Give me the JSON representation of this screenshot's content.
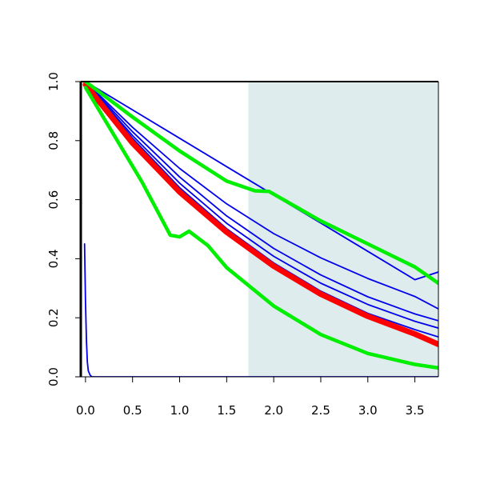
{
  "chart_data": {
    "type": "line",
    "title": "",
    "xlabel": "",
    "ylabel": "",
    "xlim": [
      -0.05,
      3.75
    ],
    "ylim": [
      0.0,
      1.0
    ],
    "grid": false,
    "x_ticks": [
      "0.0",
      "0.5",
      "1.0",
      "1.5",
      "2.0",
      "2.5",
      "3.0",
      "3.5"
    ],
    "y_ticks": [
      "0.0",
      "0.2",
      "0.4",
      "0.6",
      "0.8",
      "1.0"
    ],
    "shaded_region": {
      "x_start": 1.73,
      "x_end": 3.75,
      "color": "#dfeced"
    },
    "series": [
      {
        "color": "#0000ee",
        "role": "blue-line",
        "points": [
          [
            -0.01,
            0.45
          ],
          [
            0.0,
            0.25
          ],
          [
            0.01,
            0.12
          ],
          [
            0.02,
            0.05
          ],
          [
            0.03,
            0.02
          ],
          [
            0.05,
            0.005
          ],
          [
            0.07,
            0.0
          ],
          [
            3.75,
            0.0
          ]
        ]
      },
      {
        "color": "#0000ee",
        "role": "blue-line",
        "points": [
          [
            0.0,
            1.0
          ],
          [
            0.5,
            0.904
          ],
          [
            1.0,
            0.808
          ],
          [
            1.5,
            0.712
          ],
          [
            2.0,
            0.616
          ],
          [
            2.5,
            0.521
          ],
          [
            3.0,
            0.425
          ],
          [
            3.5,
            0.329
          ],
          [
            3.75,
            0.355
          ]
        ]
      },
      {
        "color": "#0000ee",
        "role": "blue-line",
        "points": [
          [
            0.0,
            1.0
          ],
          [
            0.5,
            0.845
          ],
          [
            1.0,
            0.706
          ],
          [
            1.5,
            0.586
          ],
          [
            2.0,
            0.485
          ],
          [
            2.5,
            0.403
          ],
          [
            3.0,
            0.333
          ],
          [
            3.5,
            0.272
          ],
          [
            3.75,
            0.23
          ]
        ]
      },
      {
        "color": "#0000ee",
        "role": "blue-line",
        "points": [
          [
            0.0,
            1.0
          ],
          [
            0.5,
            0.83
          ],
          [
            1.0,
            0.677
          ],
          [
            1.5,
            0.545
          ],
          [
            2.0,
            0.435
          ],
          [
            2.5,
            0.345
          ],
          [
            3.0,
            0.271
          ],
          [
            3.5,
            0.213
          ],
          [
            3.75,
            0.19
          ]
        ]
      },
      {
        "color": "#0000ee",
        "role": "blue-line",
        "points": [
          [
            0.0,
            1.0
          ],
          [
            0.5,
            0.817
          ],
          [
            1.0,
            0.656
          ],
          [
            1.5,
            0.52
          ],
          [
            2.0,
            0.408
          ],
          [
            2.5,
            0.317
          ],
          [
            3.0,
            0.245
          ],
          [
            3.5,
            0.188
          ],
          [
            3.75,
            0.165
          ]
        ]
      },
      {
        "color": "#0000ee",
        "role": "blue-line",
        "points": [
          [
            0.0,
            1.0
          ],
          [
            0.5,
            0.808
          ],
          [
            1.0,
            0.641
          ],
          [
            1.5,
            0.502
          ],
          [
            2.0,
            0.386
          ],
          [
            2.5,
            0.29
          ],
          [
            3.0,
            0.215
          ],
          [
            3.5,
            0.16
          ],
          [
            3.75,
            0.135
          ]
        ]
      },
      {
        "color": "#ff0000",
        "role": "red-line",
        "points": [
          [
            0.0,
            0.99
          ],
          [
            0.5,
            0.792
          ],
          [
            1.0,
            0.626
          ],
          [
            1.5,
            0.49
          ],
          [
            2.0,
            0.375
          ],
          [
            2.5,
            0.28
          ],
          [
            3.0,
            0.205
          ],
          [
            3.5,
            0.145
          ],
          [
            3.75,
            0.11
          ]
        ]
      },
      {
        "color": "#00ee00",
        "role": "green-line",
        "points": [
          [
            0.0,
            1.0
          ],
          [
            0.5,
            0.88
          ],
          [
            1.0,
            0.765
          ],
          [
            1.5,
            0.663
          ],
          [
            1.8,
            0.63
          ],
          [
            1.95,
            0.628
          ],
          [
            2.5,
            0.528
          ],
          [
            3.0,
            0.45
          ],
          [
            3.5,
            0.372
          ],
          [
            3.75,
            0.317
          ]
        ]
      },
      {
        "color": "#00ee00",
        "role": "green-line",
        "points": [
          [
            0.0,
            0.98
          ],
          [
            0.3,
            0.82
          ],
          [
            0.6,
            0.66
          ],
          [
            0.9,
            0.48
          ],
          [
            1.0,
            0.474
          ],
          [
            1.1,
            0.493
          ],
          [
            1.3,
            0.445
          ],
          [
            1.5,
            0.37
          ],
          [
            2.0,
            0.24
          ],
          [
            2.5,
            0.143
          ],
          [
            3.0,
            0.079
          ],
          [
            3.5,
            0.042
          ],
          [
            3.75,
            0.03
          ]
        ]
      }
    ]
  }
}
